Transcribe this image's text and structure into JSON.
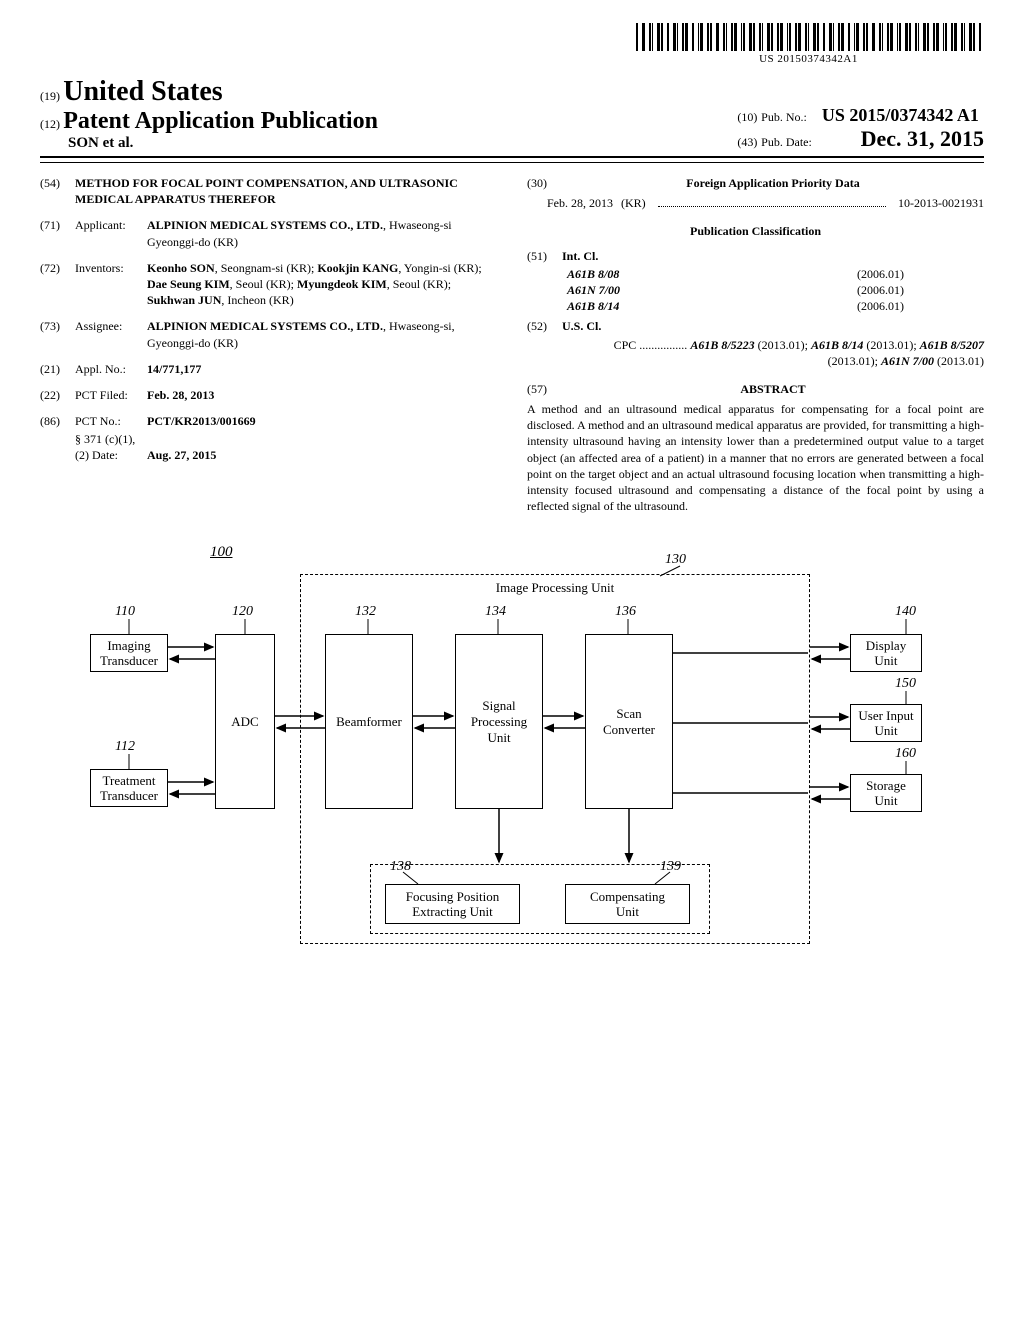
{
  "barcode_text": "US 20150374342A1",
  "header": {
    "country_code": "(19)",
    "country": "United States",
    "pub_type_code": "(12)",
    "pub_type": "Patent Application Publication",
    "authors": "SON et al.",
    "pub_no_code": "(10)",
    "pub_no_label": "Pub. No.:",
    "pub_no": "US 2015/0374342 A1",
    "pub_date_code": "(43)",
    "pub_date_label": "Pub. Date:",
    "pub_date": "Dec. 31, 2015"
  },
  "left": {
    "title_code": "(54)",
    "title": "METHOD FOR FOCAL POINT COMPENSATION, AND ULTRASONIC MEDICAL APPARATUS THEREFOR",
    "applicant_code": "(71)",
    "applicant_label": "Applicant:",
    "applicant": "ALPINION MEDICAL SYSTEMS CO., LTD., Hwaseong-si Gyeonggi-do (KR)",
    "inventors_code": "(72)",
    "inventors_label": "Inventors:",
    "inventors": "Keonho SON, Seongnam-si (KR); Kookjin KANG, Yongin-si (KR); Dae Seung KIM, Seoul (KR); Myungdeok KIM, Seoul (KR); Sukhwan JUN, Incheon (KR)",
    "assignee_code": "(73)",
    "assignee_label": "Assignee:",
    "assignee": "ALPINION MEDICAL SYSTEMS CO., LTD., Hwaseong-si, Gyeonggi-do (KR)",
    "appl_no_code": "(21)",
    "appl_no_label": "Appl. No.:",
    "appl_no": "14/771,177",
    "pct_filed_code": "(22)",
    "pct_filed_label": "PCT Filed:",
    "pct_filed": "Feb. 28, 2013",
    "pct_no_code": "(86)",
    "pct_no_label": "PCT No.:",
    "pct_no": "PCT/KR2013/001669",
    "sect_label": "§ 371 (c)(1),",
    "sect_date_label": "(2) Date:",
    "sect_date": "Aug. 27, 2015"
  },
  "right": {
    "foreign_code": "(30)",
    "foreign_heading": "Foreign Application Priority Data",
    "foreign_date": "Feb. 28, 2013",
    "foreign_country": "(KR)",
    "foreign_no": "10-2013-0021931",
    "pub_class_heading": "Publication Classification",
    "int_cl_code": "(51)",
    "int_cl_label": "Int. Cl.",
    "int_cl": [
      {
        "cls": "A61B 8/08",
        "ver": "(2006.01)"
      },
      {
        "cls": "A61N 7/00",
        "ver": "(2006.01)"
      },
      {
        "cls": "A61B 8/14",
        "ver": "(2006.01)"
      }
    ],
    "us_cl_code": "(52)",
    "us_cl_label": "U.S. Cl.",
    "cpc_label": "CPC",
    "cpc": "A61B 8/5223 (2013.01); A61B 8/14 (2013.01); A61B 8/5207 (2013.01); A61N 7/00 (2013.01)",
    "abstract_code": "(57)",
    "abstract_label": "ABSTRACT",
    "abstract": "A method and an ultrasound medical apparatus for compensating for a focal point are disclosed. A method and an ultrasound medical apparatus are provided, for transmitting a high-intensity ultrasound having an intensity lower than a predetermined output value to a target object (an affected area of a patient) in a manner that no errors are generated between a focal point on the target object and an actual ultrasound focusing location when transmitting a high-intensity focused ultrasound and compensating a distance of the focal point by using a reflected signal of the ultrasound."
  },
  "diagram": {
    "fig_ref": "100",
    "ipu_label": "Image Processing Unit",
    "boxes": {
      "110": {
        "label": "Imaging\nTransducer",
        "ref": "110"
      },
      "112": {
        "label": "Treatment\nTransducer",
        "ref": "112"
      },
      "120": {
        "label": "ADC",
        "ref": "120"
      },
      "132": {
        "label": "Beamformer",
        "ref": "132"
      },
      "134": {
        "label": "Signal\nProcessing\nUnit",
        "ref": "134"
      },
      "136": {
        "label": "Scan\nConverter",
        "ref": "136"
      },
      "138": {
        "label": "Focusing Position\nExtracting Unit",
        "ref": "138"
      },
      "139": {
        "label": "Compensating\nUnit",
        "ref": "139"
      },
      "140": {
        "label": "Display\nUnit",
        "ref": "140"
      },
      "150": {
        "label": "User Input\nUnit",
        "ref": "150"
      },
      "160": {
        "label": "Storage\nUnit",
        "ref": "160"
      },
      "130": {
        "ref": "130"
      }
    }
  }
}
